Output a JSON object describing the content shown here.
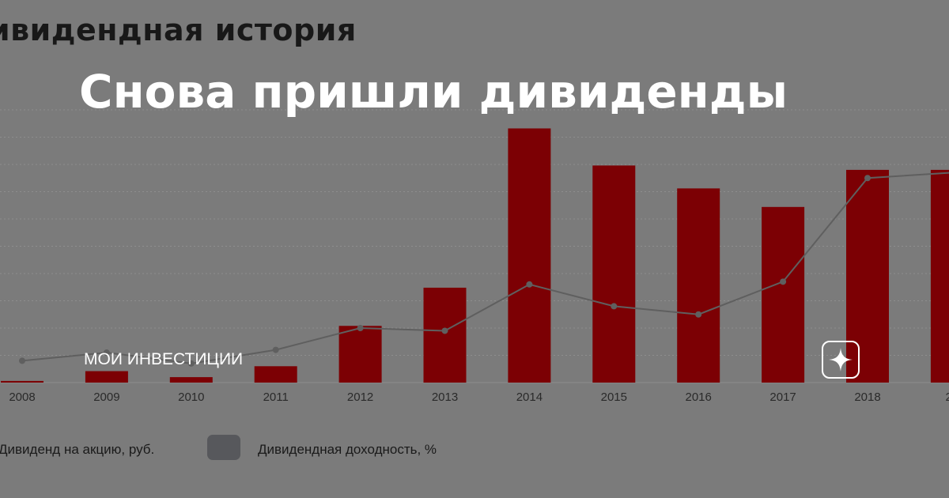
{
  "headline": "Снова пришли дивиденды",
  "channel": {
    "name": "МОИ ИНВЕСТИЦИИ",
    "icon": "sparkle-icon"
  },
  "colors": {
    "bar": "#7c0004",
    "line": "#5f5f5f",
    "grid": "#8e8e8e",
    "background": "#7b7b7b"
  },
  "chart_data": {
    "type": "bar",
    "title": "ивидендная история",
    "categories": [
      "2008",
      "2009",
      "2010",
      "2011",
      "2012",
      "2013",
      "2014",
      "2015",
      "2016",
      "2017",
      "2018",
      "20"
    ],
    "series": [
      {
        "name": "Дивиденд на акцию, руб.",
        "type": "bar",
        "values": [
          0.3,
          2.1,
          1.0,
          3.0,
          10.4,
          17.4,
          46.6,
          39.8,
          35.6,
          32.2,
          39.0,
          39.0
        ]
      },
      {
        "name": "Дивидендная доходность, %",
        "type": "line",
        "values": [
          0.8,
          1.1,
          0.7,
          1.2,
          2.0,
          1.9,
          3.6,
          2.8,
          2.5,
          3.7,
          7.5,
          7.7
        ]
      }
    ],
    "ylim": [
      0,
      50
    ],
    "y2lim": [
      0,
      10
    ],
    "grid": true,
    "legend": "bottom-left"
  }
}
